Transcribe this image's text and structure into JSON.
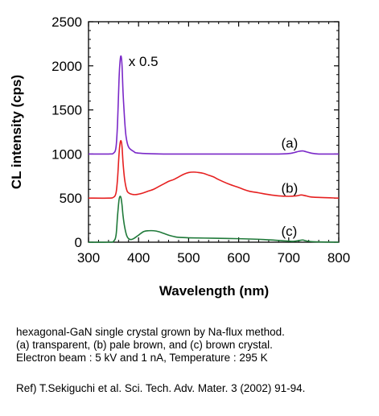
{
  "chart_data": {
    "type": "line",
    "xlabel": "Wavelength (nm)",
    "ylabel": "CL intensity (cps)",
    "xlim": [
      300,
      800
    ],
    "ylim": [
      0,
      2500
    ],
    "xticks": [
      "300",
      "400",
      "500",
      "600",
      "700",
      "800"
    ],
    "yticks": [
      "0",
      "500",
      "1000",
      "1500",
      "2000",
      "2500"
    ],
    "grid": false,
    "legend": "none",
    "annotations": [
      {
        "text": "x 0.5",
        "x": 380,
        "y": 2000
      },
      {
        "text": "(a)",
        "x": 685,
        "y": 1070
      },
      {
        "text": "(b)",
        "x": 685,
        "y": 560
      },
      {
        "text": "(c)",
        "x": 685,
        "y": 75
      }
    ],
    "series": [
      {
        "label": "(a)",
        "color": "#7a28c8",
        "x": [
          300,
          340,
          350,
          355,
          358,
          361,
          363,
          365,
          367,
          369,
          372,
          375,
          380,
          390,
          400,
          450,
          500,
          550,
          600,
          650,
          680,
          700,
          710,
          720,
          728,
          735,
          745,
          760,
          800
        ],
        "y": [
          1000,
          1000,
          1010,
          1080,
          1350,
          1850,
          2050,
          2110,
          2000,
          1700,
          1400,
          1200,
          1080,
          1030,
          1010,
          1000,
          1000,
          1000,
          1000,
          1000,
          1000,
          1005,
          1015,
          1030,
          1035,
          1025,
          1010,
          1000,
          1000
        ]
      },
      {
        "label": "(b)",
        "color": "#e62020",
        "x": [
          300,
          340,
          350,
          355,
          358,
          361,
          363,
          365,
          367,
          369,
          372,
          376,
          380,
          390,
          400,
          410,
          420,
          430,
          440,
          450,
          460,
          470,
          480,
          490,
          500,
          510,
          520,
          530,
          540,
          550,
          560,
          580,
          600,
          620,
          640,
          660,
          680,
          700,
          715,
          725,
          735,
          750,
          800
        ],
        "y": [
          500,
          500,
          510,
          560,
          720,
          1000,
          1120,
          1150,
          1080,
          900,
          720,
          600,
          560,
          540,
          545,
          560,
          580,
          600,
          630,
          660,
          690,
          710,
          740,
          770,
          790,
          795,
          790,
          780,
          760,
          740,
          710,
          660,
          620,
          580,
          560,
          540,
          525,
          520,
          525,
          535,
          525,
          510,
          500
        ]
      },
      {
        "label": "(c)",
        "color": "#207a3a",
        "x": [
          300,
          340,
          350,
          355,
          358,
          361,
          363,
          365,
          367,
          369,
          372,
          376,
          380,
          385,
          390,
          400,
          410,
          420,
          430,
          440,
          450,
          460,
          470,
          480,
          500,
          550,
          600,
          650,
          700,
          710,
          720,
          728,
          735,
          750,
          800
        ],
        "y": [
          0,
          0,
          10,
          80,
          300,
          480,
          520,
          500,
          420,
          300,
          180,
          80,
          40,
          30,
          40,
          80,
          120,
          130,
          130,
          120,
          100,
          80,
          65,
          55,
          50,
          45,
          40,
          30,
          12,
          10,
          18,
          25,
          15,
          5,
          0
        ]
      }
    ]
  },
  "caption": {
    "lines": [
      "hexagonal-GaN single crystal grown by Na-flux method.",
      "(a) transparent, (b) pale brown, and (c) brown crystal.",
      "Electron beam : 5 kV and 1 nA, Temperature : 295 K"
    ],
    "reference": "Ref) T.Sekiguchi et al. Sci. Tech. Adv. Mater. 3 (2002) 91-94."
  }
}
